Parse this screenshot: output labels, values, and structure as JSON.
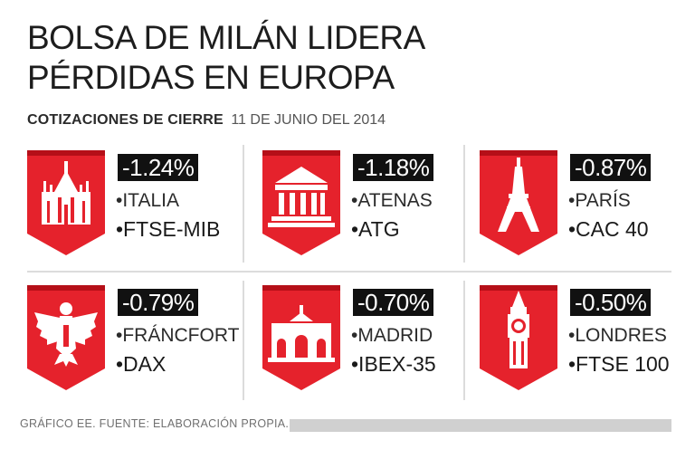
{
  "title": {
    "line1": "BOLSA DE MILÁN LIDERA",
    "line2": "PÉRDIDAS EN EUROPA"
  },
  "subtitle": {
    "label": "COTIZACIONES DE CIERRE",
    "date": "11 DE JUNIO DEL 2014"
  },
  "chart_data": {
    "type": "table",
    "title": "BOLSA DE MILÁN LIDERA PÉRDIDAS EN EUROPA",
    "subtitle": "COTIZACIONES DE CIERRE 11 DE JUNIO DEL 2014",
    "unit": "%",
    "rows": [
      {
        "city": "ITALIA",
        "index": "FTSE-MIB",
        "change": -1.24,
        "label": "-1.24%",
        "icon": "milan-cathedral-icon"
      },
      {
        "city": "ATENAS",
        "index": "ATG",
        "change": -1.18,
        "label": "-1.18%",
        "icon": "greek-temple-icon"
      },
      {
        "city": "PARÍS",
        "index": "CAC 40",
        "change": -0.87,
        "label": "-0.87%",
        "icon": "eiffel-tower-icon"
      },
      {
        "city": "FRÁNCFORT",
        "index": "DAX",
        "change": -0.79,
        "label": "-0.79%",
        "icon": "german-eagle-icon"
      },
      {
        "city": "MADRID",
        "index": "IBEX-35",
        "change": -0.7,
        "label": "-0.70%",
        "icon": "puerta-de-alcala-icon"
      },
      {
        "city": "LONDRES",
        "index": "FTSE 100",
        "change": -0.5,
        "label": "-0.50%",
        "icon": "big-ben-icon"
      }
    ]
  },
  "footer": {
    "source": "GRÁFICO EE. FUENTE: ELABORACIÓN PROPIA."
  },
  "colors": {
    "shield": "#e5222c",
    "shield_dark": "#b50f18",
    "badge": "#111111"
  }
}
